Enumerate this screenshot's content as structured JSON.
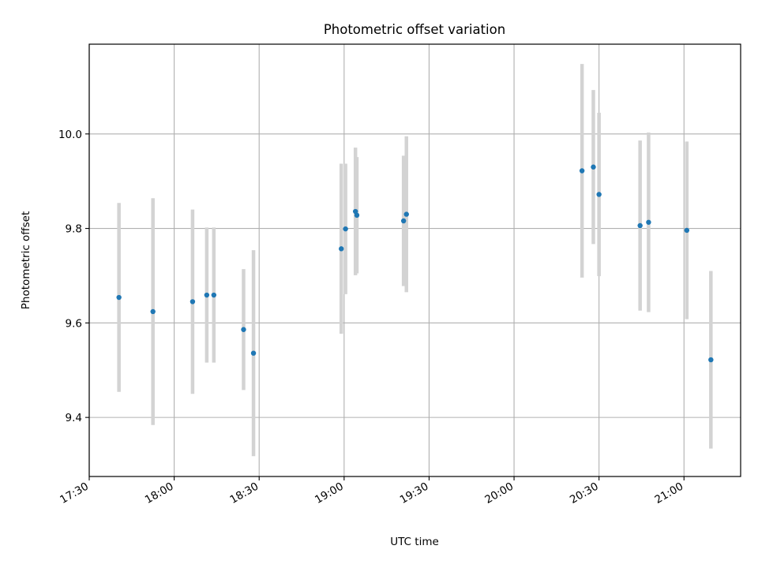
{
  "chart_data": {
    "type": "scatter",
    "title": "Photometric offset variation",
    "xlabel": "UTC time",
    "ylabel": "Photometric offset",
    "xlim": [
      "17:30",
      "21:20"
    ],
    "ylim": [
      9.275,
      10.19
    ],
    "x_ticks": [
      "17:30",
      "18:00",
      "18:30",
      "19:00",
      "19:30",
      "20:00",
      "20:30",
      "21:00"
    ],
    "y_ticks": [
      9.4,
      9.6,
      9.8,
      10.0
    ],
    "y_tick_labels": [
      "9.4",
      "9.6",
      "9.8",
      "10.0"
    ],
    "grid": true,
    "colors": {
      "points": "#1f77b4",
      "errorbars": "#d3d3d3",
      "grid": "#b0b0b0"
    },
    "series": [
      {
        "points": [
          {
            "x": "17:40:30",
            "y": 9.654,
            "yerr": 0.2
          },
          {
            "x": "17:52:30",
            "y": 9.624,
            "yerr": 0.24
          },
          {
            "x": "18:06:30",
            "y": 9.645,
            "yerr": 0.195
          },
          {
            "x": "18:11:30",
            "y": 9.659,
            "yerr": 0.143
          },
          {
            "x": "18:14:00",
            "y": 9.659,
            "yerr": 0.143
          },
          {
            "x": "18:24:30",
            "y": 9.586,
            "yerr": 0.128
          },
          {
            "x": "18:28:00",
            "y": 9.536,
            "yerr": 0.218
          },
          {
            "x": "18:59:00",
            "y": 9.757,
            "yerr": 0.18
          },
          {
            "x": "19:00:30",
            "y": 9.799,
            "yerr": 0.138
          },
          {
            "x": "19:04:00",
            "y": 9.836,
            "yerr": 0.135
          },
          {
            "x": "19:04:30",
            "y": 9.828,
            "yerr": 0.123
          },
          {
            "x": "19:21:00",
            "y": 9.816,
            "yerr": 0.138
          },
          {
            "x": "19:22:00",
            "y": 9.83,
            "yerr": 0.165
          },
          {
            "x": "20:24:00",
            "y": 9.922,
            "yerr": 0.226
          },
          {
            "x": "20:28:00",
            "y": 9.93,
            "yerr": 0.163
          },
          {
            "x": "20:30:00",
            "y": 9.872,
            "yerr": 0.173
          },
          {
            "x": "20:44:30",
            "y": 9.806,
            "yerr": 0.18
          },
          {
            "x": "20:47:30",
            "y": 9.813,
            "yerr": 0.19
          },
          {
            "x": "21:01:00",
            "y": 9.796,
            "yerr": 0.188
          },
          {
            "x": "21:09:30",
            "y": 9.522,
            "yerr": 0.188
          }
        ]
      }
    ]
  }
}
